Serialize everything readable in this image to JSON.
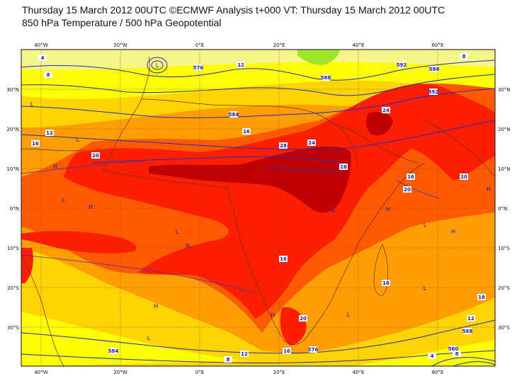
{
  "title_line1": "Thursday 15 March 2012 00UTC ©ECMWF Analysis t+000 VT: Thursday 15 March 2012 00UTC",
  "title_line2": "850 hPa Temperature / 500 hPa Geopotential",
  "longitude_labels": [
    "40°W",
    "20°W",
    "0°E",
    "20°E",
    "40°E",
    "60°E"
  ],
  "latitude_labels": [
    "30°N",
    "20°N",
    "10°N",
    "0°N",
    "10°S",
    "20°S",
    "30°S"
  ],
  "contour_labels": [
    "4",
    "8",
    "8",
    "12",
    "16",
    "16",
    "20",
    "20",
    "24",
    "24",
    "28",
    "28",
    "16",
    "20",
    "16",
    "12",
    "12",
    "8",
    "8",
    "4",
    "16",
    "18",
    "20",
    "16",
    "12",
    "576",
    "584",
    "588",
    "592",
    "592",
    "588",
    "584",
    "576",
    "568",
    "560"
  ],
  "pressure_centers": [
    "L",
    "L",
    "L",
    "L",
    "L",
    "L",
    "H",
    "H",
    "H",
    "H",
    "H",
    "H",
    "L",
    "L",
    "L",
    "H",
    "H",
    "H"
  ],
  "colors": {
    "lt8": "#f5f58a",
    "t8_12": "#ffff00",
    "t12_16": "#ffd400",
    "t16_20": "#ff9e00",
    "t20_24": "#ff5a00",
    "t24_28": "#ff1e00",
    "t28_32": "#c00000",
    "green": "#a0e628",
    "line": "#2a2ab4",
    "coast": "#7a2a10"
  }
}
